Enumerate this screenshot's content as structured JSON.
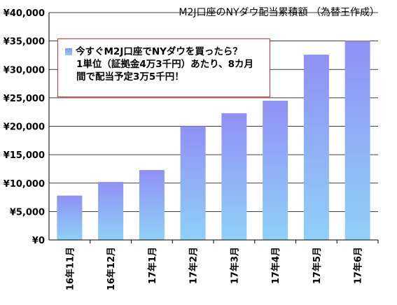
{
  "chart_data": {
    "type": "bar",
    "title": "M2J口座のNYダウ配当累積額 （為替王作成）",
    "categories": [
      "16年11月",
      "16年12月",
      "17年1月",
      "17年2月",
      "17年3月",
      "17年4月",
      "17年5月",
      "17年6月"
    ],
    "values": [
      7800,
      10200,
      12300,
      20000,
      22300,
      24500,
      32600,
      35000
    ],
    "ylim": [
      0,
      40000
    ],
    "yticks": [
      "¥0",
      "¥5,000",
      "¥10,000",
      "¥15,000",
      "¥20,000",
      "¥25,000",
      "¥30,000",
      "¥35,000",
      "¥40,000"
    ],
    "grid": true,
    "colors": {
      "bar_top": "#8f90f5",
      "bar_bottom": "#8fd1f7",
      "grid": "#000000",
      "note_border": "#e03030"
    },
    "annotation": {
      "line1": "今すぐM2J口座でNYダウを買ったら？",
      "line2": "1単位（証拠金4万3千円）あたり、8カ月",
      "line3": "間で配当予定3万5千円！"
    }
  }
}
